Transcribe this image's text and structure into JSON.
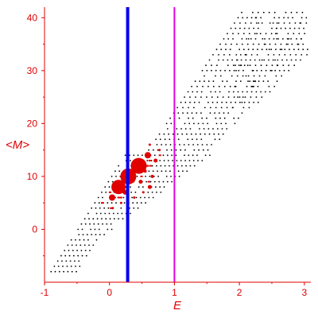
{
  "chart_data": {
    "type": "scatter",
    "xlabel": "E",
    "ylabel": "<M>",
    "xlim": [
      -1.0,
      3.1
    ],
    "ylim": [
      -10.0,
      42.0
    ],
    "xticks": [
      -1,
      0,
      1,
      2,
      3
    ],
    "yticks": [
      0,
      10,
      20,
      30,
      40
    ],
    "grid": false,
    "colors": {
      "axis": "#e00000",
      "black_points": "#000000",
      "red_points": "#e00000",
      "line_blue": "#0000ee",
      "line_magenta": "#e000e0"
    },
    "vertical_lines": [
      {
        "x": 0.28,
        "color": "#0000ee"
      },
      {
        "x": 1.0,
        "color": "#e000e0"
      }
    ],
    "red_markers": [
      {
        "x": 0.14,
        "y": 8.0,
        "size": 9.0
      },
      {
        "x": 0.29,
        "y": 10.0,
        "size": 10.0
      },
      {
        "x": 0.45,
        "y": 12.0,
        "size": 10.0
      },
      {
        "x": 0.04,
        "y": 6.0,
        "size": 4.0
      },
      {
        "x": 0.59,
        "y": 14.0,
        "size": 4.0
      },
      {
        "x": 0.71,
        "y": 13.0,
        "size": 2.5
      },
      {
        "x": 0.36,
        "y": 11.0,
        "size": 2.5
      },
      {
        "x": 0.24,
        "y": 7.0,
        "size": 3.0
      },
      {
        "x": 0.48,
        "y": 9.0,
        "size": 2.5
      },
      {
        "x": 0.62,
        "y": 8.0,
        "size": 2.5
      },
      {
        "x": 0.55,
        "y": 11.0,
        "size": 2.0
      },
      {
        "x": 0.66,
        "y": 10.0,
        "size": 2.0
      },
      {
        "x": 0.05,
        "y": 4.0,
        "size": 1.5
      },
      {
        "x": 0.18,
        "y": 5.0,
        "size": 1.5
      },
      {
        "x": 0.62,
        "y": 16.0,
        "size": 1.5
      },
      {
        "x": 0.77,
        "y": 15.0,
        "size": 1.5
      },
      {
        "x": 0.38,
        "y": 6.0,
        "size": 1.5
      },
      {
        "x": 0.52,
        "y": 7.0,
        "size": 1.5
      }
    ]
  }
}
